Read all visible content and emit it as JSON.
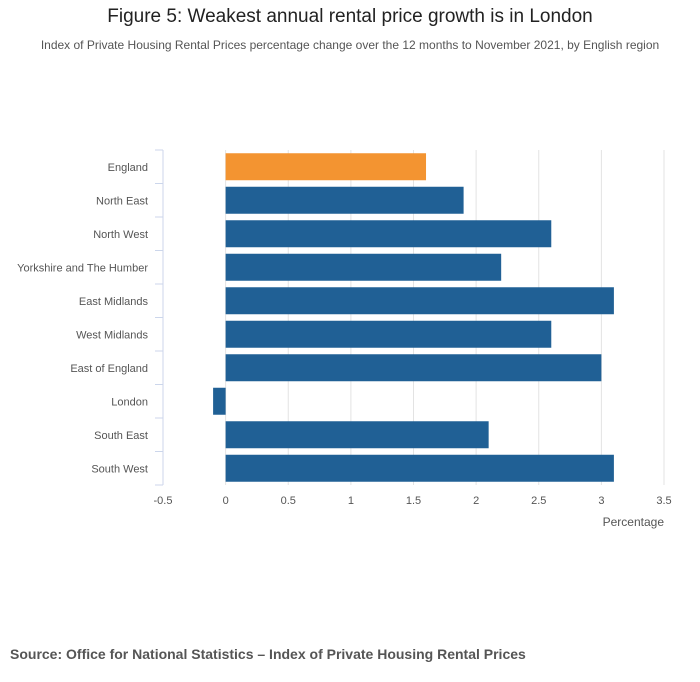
{
  "chart_data": {
    "type": "bar",
    "orientation": "horizontal",
    "title": "Figure 5: Weakest annual rental price growth is in London",
    "subtitle": "Index of Private Housing Rental Prices percentage change over the 12 months to November 2021, by English region",
    "categories": [
      "England",
      "North East",
      "North West",
      "Yorkshire and The Humber",
      "East Midlands",
      "West Midlands",
      "East of England",
      "London",
      "South East",
      "South West"
    ],
    "values": [
      1.6,
      1.9,
      2.6,
      2.2,
      3.1,
      2.6,
      3.0,
      -0.1,
      2.1,
      3.1
    ],
    "highlight": "England",
    "xlabel": "Percentage",
    "ylabel": "",
    "xlim": [
      -0.5,
      3.5
    ],
    "xticks": [
      "-0.5",
      "0",
      "0.5",
      "1",
      "1.5",
      "2",
      "2.5",
      "3",
      "3.5"
    ],
    "grid": true,
    "colors": {
      "default": "#206095",
      "highlight": "#f39431"
    }
  },
  "source": "Source: Office for National Statistics – Index of Private Housing Rental Prices"
}
